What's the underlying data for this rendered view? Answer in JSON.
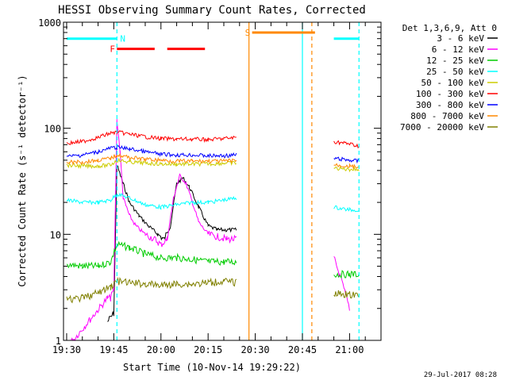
{
  "chart_data": {
    "type": "line",
    "title": "HESSI Observing Summary Count Rates, Corrected",
    "xlabel": "Start Time (10-Nov-14 19:29:22)",
    "ylabel": "Corrected Count Rate (s⁻¹ detector⁻¹)",
    "y_scale": "log",
    "ylim": [
      1,
      1000
    ],
    "y_ticks": [
      {
        "value": 1,
        "label": "1"
      },
      {
        "value": 10,
        "label": "10"
      },
      {
        "value": 100,
        "label": "100"
      },
      {
        "value": 1000,
        "label": "1000"
      }
    ],
    "xlim": [
      "19:29",
      "21:10"
    ],
    "x_ticks": [
      "19:30",
      "19:45",
      "20:00",
      "20:15",
      "20:30",
      "20:45",
      "21:00"
    ],
    "legend_header": "Det 1,3,6,9, Att 0",
    "legend_placement": "right",
    "series": [
      {
        "name": "3 - 6 keV",
        "color": "#000000",
        "points": [
          [
            "19:43",
            1.5
          ],
          [
            "19:45",
            1.8
          ],
          [
            "19:46",
            45
          ],
          [
            "19:48",
            30
          ],
          [
            "19:50",
            20
          ],
          [
            "19:53",
            15
          ],
          [
            "19:56",
            12
          ],
          [
            "19:59",
            10
          ],
          [
            "20:01",
            9
          ],
          [
            "20:03",
            12
          ],
          [
            "20:05",
            30
          ],
          [
            "20:07",
            34
          ],
          [
            "20:09",
            28
          ],
          [
            "20:12",
            18
          ],
          [
            "20:15",
            12
          ],
          [
            "20:18",
            11
          ],
          [
            "20:21",
            11
          ],
          [
            "20:24",
            11
          ]
        ]
      },
      {
        "name": "6 - 12 keV",
        "color": "#ff00ff",
        "points": [
          [
            "19:30",
            0.9
          ],
          [
            "19:32",
            1.0
          ],
          [
            "19:43",
            2.5
          ],
          [
            "19:44",
            2.5
          ],
          [
            "19:45",
            3
          ],
          [
            "19:46",
            120
          ],
          [
            "19:47",
            60
          ],
          [
            "19:48",
            22
          ],
          [
            "19:50",
            15
          ],
          [
            "19:52",
            12
          ],
          [
            "19:55",
            10
          ],
          [
            "19:58",
            9
          ],
          [
            "20:00",
            8
          ],
          [
            "20:02",
            9
          ],
          [
            "20:04",
            22
          ],
          [
            "20:06",
            36
          ],
          [
            "20:08",
            30
          ],
          [
            "20:10",
            20
          ],
          [
            "20:12",
            13
          ],
          [
            "20:15",
            10
          ],
          [
            "20:18",
            9.5
          ],
          [
            "20:21",
            9
          ],
          [
            "20:24",
            9
          ],
          [
            "20:55",
            6
          ],
          [
            "20:57",
            4
          ],
          [
            "21:00",
            2
          ]
        ]
      },
      {
        "name": "12 - 25 keV",
        "color": "#00cc00",
        "points": [
          [
            "19:30",
            5.2
          ],
          [
            "19:35",
            5
          ],
          [
            "19:40",
            5
          ],
          [
            "19:44",
            5.5
          ],
          [
            "19:46",
            8
          ],
          [
            "19:50",
            7.5
          ],
          [
            "19:55",
            6.5
          ],
          [
            "20:00",
            6
          ],
          [
            "20:05",
            6
          ],
          [
            "20:10",
            5.8
          ],
          [
            "20:15",
            5.5
          ],
          [
            "20:20",
            5.5
          ],
          [
            "20:24",
            5.5
          ],
          [
            "20:55",
            4.2
          ],
          [
            "21:00",
            4.2
          ],
          [
            "21:03",
            4.2
          ]
        ]
      },
      {
        "name": "25 - 50 keV",
        "color": "#00ffff",
        "points": [
          [
            "19:30",
            21
          ],
          [
            "19:35",
            20
          ],
          [
            "19:40",
            20
          ],
          [
            "19:44",
            21
          ],
          [
            "19:46",
            24
          ],
          [
            "19:50",
            22
          ],
          [
            "19:55",
            19
          ],
          [
            "20:00",
            18
          ],
          [
            "20:05",
            19
          ],
          [
            "20:10",
            20
          ],
          [
            "20:15",
            20
          ],
          [
            "20:20",
            21
          ],
          [
            "20:24",
            22
          ],
          [
            "20:55",
            18
          ],
          [
            "21:00",
            17
          ],
          [
            "21:03",
            17
          ]
        ]
      },
      {
        "name": "50 - 100 keV",
        "color": "#cccc00",
        "points": [
          [
            "19:30",
            45
          ],
          [
            "19:35",
            44
          ],
          [
            "19:40",
            44
          ],
          [
            "19:44",
            45
          ],
          [
            "19:46",
            50
          ],
          [
            "19:50",
            48
          ],
          [
            "19:55",
            47
          ],
          [
            "20:00",
            46
          ],
          [
            "20:05",
            46
          ],
          [
            "20:10",
            46
          ],
          [
            "20:15",
            46
          ],
          [
            "20:20",
            47
          ],
          [
            "20:24",
            47
          ],
          [
            "20:55",
            42
          ],
          [
            "21:00",
            41
          ],
          [
            "21:03",
            41
          ]
        ]
      },
      {
        "name": "100 - 300 keV",
        "color": "#ff0000",
        "points": [
          [
            "19:30",
            72
          ],
          [
            "19:35",
            75
          ],
          [
            "19:40",
            82
          ],
          [
            "19:44",
            90
          ],
          [
            "19:46",
            92
          ],
          [
            "19:50",
            88
          ],
          [
            "19:55",
            83
          ],
          [
            "20:00",
            80
          ],
          [
            "20:05",
            79
          ],
          [
            "20:10",
            79
          ],
          [
            "20:15",
            78
          ],
          [
            "20:20",
            80
          ],
          [
            "20:24",
            82
          ],
          [
            "20:55",
            75
          ],
          [
            "21:00",
            71
          ],
          [
            "21:03",
            68
          ]
        ]
      },
      {
        "name": "300 - 800 keV",
        "color": "#0000ff",
        "points": [
          [
            "19:30",
            54
          ],
          [
            "19:35",
            56
          ],
          [
            "19:40",
            60
          ],
          [
            "19:44",
            65
          ],
          [
            "19:46",
            66
          ],
          [
            "19:50",
            64
          ],
          [
            "19:55",
            60
          ],
          [
            "20:00",
            57
          ],
          [
            "20:05",
            56
          ],
          [
            "20:10",
            56
          ],
          [
            "20:15",
            55
          ],
          [
            "20:20",
            55
          ],
          [
            "20:24",
            56
          ],
          [
            "20:55",
            52
          ],
          [
            "21:00",
            50
          ],
          [
            "21:03",
            49
          ]
        ]
      },
      {
        "name": "800 - 7000 keV",
        "color": "#ff8800",
        "points": [
          [
            "19:30",
            48
          ],
          [
            "19:35",
            48
          ],
          [
            "19:40",
            50
          ],
          [
            "19:44",
            52
          ],
          [
            "19:46",
            56
          ],
          [
            "19:50",
            53
          ],
          [
            "19:55",
            51
          ],
          [
            "20:00",
            50
          ],
          [
            "20:05",
            49
          ],
          [
            "20:10",
            49
          ],
          [
            "20:15",
            49
          ],
          [
            "20:20",
            49
          ],
          [
            "20:24",
            50
          ],
          [
            "20:55",
            45
          ],
          [
            "21:00",
            44
          ],
          [
            "21:03",
            43
          ]
        ]
      },
      {
        "name": "7000 - 20000 keV",
        "color": "#808000",
        "points": [
          [
            "19:30",
            2.4
          ],
          [
            "19:35",
            2.5
          ],
          [
            "19:40",
            2.8
          ],
          [
            "19:44",
            3.2
          ],
          [
            "19:46",
            3.6
          ],
          [
            "19:50",
            3.5
          ],
          [
            "19:55",
            3.4
          ],
          [
            "20:00",
            3.3
          ],
          [
            "20:05",
            3.4
          ],
          [
            "20:10",
            3.4
          ],
          [
            "20:15",
            3.5
          ],
          [
            "20:20",
            3.6
          ],
          [
            "20:24",
            3.5
          ],
          [
            "20:55",
            2.8
          ],
          [
            "21:00",
            2.7
          ],
          [
            "21:03",
            2.6
          ]
        ]
      }
    ],
    "state_bars": [
      {
        "label": "",
        "color": "#00ffff",
        "value": 700,
        "x_start": "19:30",
        "x_end": "19:46"
      },
      {
        "label": "N",
        "color": "#00ffff",
        "value": 700,
        "x_start": "19:46",
        "x_end": "19:46"
      },
      {
        "label": "F",
        "color": "#ff0000",
        "value": 560,
        "x_start": "19:46",
        "x_end": "19:58"
      },
      {
        "label": "",
        "color": "#ff0000",
        "value": 560,
        "x_start": "20:02",
        "x_end": "20:14"
      },
      {
        "label": "S",
        "color": "#ff8800",
        "value": 800,
        "x_start": "20:29",
        "x_end": "20:49"
      },
      {
        "label": "",
        "color": "#00ffff",
        "value": 700,
        "x_start": "20:55",
        "x_end": "21:03"
      }
    ],
    "vertical_markers": [
      {
        "x": "19:46",
        "color": "#00ffff",
        "style": "dashed"
      },
      {
        "x": "20:28",
        "color": "#ff8800",
        "style": "solid"
      },
      {
        "x": "20:45",
        "color": "#00ffff",
        "style": "solid"
      },
      {
        "x": "20:48",
        "color": "#ff8800",
        "style": "dashed"
      },
      {
        "x": "21:03",
        "color": "#00ffff",
        "style": "dashed"
      }
    ],
    "gaps": [
      [
        "20:25",
        "20:55"
      ]
    ],
    "grid": false
  },
  "footer": {
    "timestamp": "29-Jul-2017 08:28"
  }
}
